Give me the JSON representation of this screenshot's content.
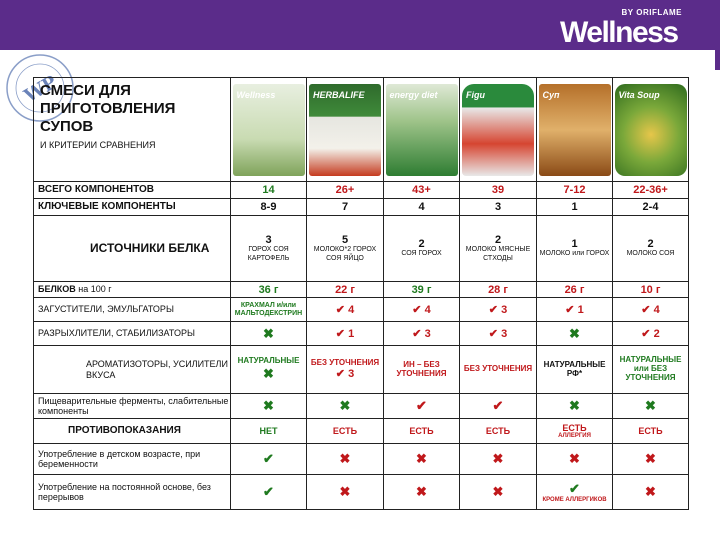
{
  "brand": {
    "small": "BY ORIFLAME",
    "big": "Wellness"
  },
  "title": "СМЕСИ ДЛЯ ПРИГОТОВЛЕНИЯ СУПОВ",
  "subtitle": "И КРИТЕРИИ СРАВНЕНИЯ",
  "products": [
    {
      "name": "Wellness",
      "pack_text": "Wellness"
    },
    {
      "name": "Herbalife",
      "pack_text": "HERBALIFE"
    },
    {
      "name": "Energy Diet",
      "pack_text": "energy diet"
    },
    {
      "name": "Figura",
      "pack_text": "Figu"
    },
    {
      "name": "Soup",
      "pack_text": "Суп"
    },
    {
      "name": "Vita Soup",
      "pack_text": "Vita Soup"
    }
  ],
  "rows": {
    "total": {
      "label": "ВСЕГО КОМПОНЕНТОВ",
      "values": [
        "14",
        "26+",
        "43+",
        "39",
        "7-12",
        "22-36+"
      ]
    },
    "key": {
      "label": "КЛЮЧЕВЫЕ КОМПОНЕНТЫ",
      "values": [
        "8-9",
        "7",
        "4",
        "3",
        "1",
        "2-4"
      ]
    },
    "protein_src": {
      "label": "ИСТОЧНИКИ БЕЛКА",
      "counts": [
        "3",
        "5",
        "2",
        "2",
        "1",
        "2"
      ],
      "details": [
        "ГОРОХ СОЯ КАРТОФЕЛЬ",
        "МОЛОКО*2 ГОРОХ СОЯ ЯЙЦО",
        "СОЯ ГОРОХ",
        "МОЛОКО МЯСНЫЕ СТХОДЫ",
        "МОЛОКО или ГОРОХ",
        "МОЛОКО СОЯ"
      ]
    },
    "protein": {
      "label_bold": "БЕЛКОВ",
      "label_rest": " на 100 г",
      "values": [
        "36 г",
        "22 г",
        "39 г",
        "28 г",
        "26 г",
        "10 г"
      ]
    },
    "thickeners": {
      "label": "ЗАГУСТИТЕЛИ, ЭМУЛЬГАТОРЫ",
      "first": "КРАХМАЛ и/или МАЛЬТОДЕКСТРИН",
      "marks": [
        "✔ 4",
        "✔ 4",
        "✔ 3",
        "✔ 1",
        "✔ 4"
      ]
    },
    "stabilizers": {
      "label": "РАЗРЫХЛИТЕЛИ, СТАБИЛИЗАТОРЫ",
      "values": [
        "✖",
        "✔ 1",
        "✔ 3",
        "✔ 3",
        "✖",
        "✔ 2"
      ]
    },
    "flavors": {
      "label": "АРОМАТИЗОТОРЫ, УСИЛИТЕЛИ ВКУСА",
      "c1_text": "НАТУРАЛЬНЫЕ",
      "c1_mark": "✖",
      "c2_text": "БЕЗ УТОЧНЕНИЯ",
      "c2_mark": "✔ 3",
      "c3_text": "ИН – БЕЗ УТОЧНЕНИЯ",
      "c4_text": "БЕЗ УТОЧНЕНИЯ",
      "c5_text": "НАТУРАЛЬНЫЕ РФ*",
      "c6_text": "НАТУРАЛЬНЫЕ или БЕЗ УТОЧНЕНИЯ"
    },
    "enzymes": {
      "label": "Пищеварительные ферменты, слабительные компоненты",
      "values": [
        "✖",
        "✖",
        "✔",
        "✔",
        "✖",
        "✖"
      ]
    },
    "contra": {
      "label": "ПРОТИВОПОКАЗАНИЯ",
      "values": [
        "НЕТ",
        "ЕСТЬ",
        "ЕСТЬ",
        "ЕСТЬ",
        "ЕСТЬ",
        "ЕСТЬ"
      ],
      "c5_note": "АЛЛЕРГИЯ"
    },
    "children": {
      "label": "Употребление в детском возрасте, при беременности",
      "values": [
        "✔",
        "✖",
        "✖",
        "✖",
        "✖",
        "✖"
      ]
    },
    "permanent": {
      "label": "Употребление на постоянной основе, без перерывов",
      "values": [
        "✔",
        "✖",
        "✖",
        "✖",
        "✔",
        "✖"
      ],
      "c5_note": "КРОМЕ АЛЛЕРГИКОВ"
    }
  },
  "stamp_text": "WP",
  "colors": {
    "header_bar": "#5b2c8a",
    "red": "#c0181b",
    "green": "#1f7a1f"
  }
}
